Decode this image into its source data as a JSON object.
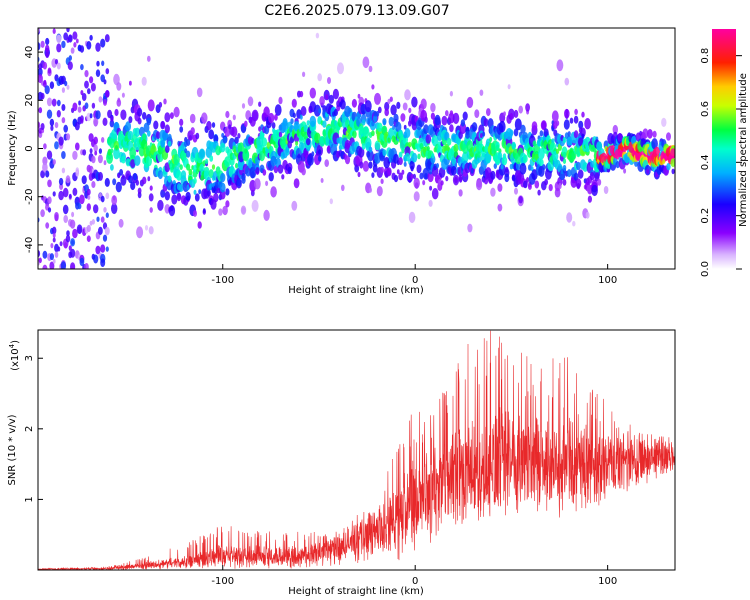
{
  "chart_data": [
    {
      "type": "heatmap",
      "title": "C2E6.2025.079.13.09.G07",
      "xlabel": "Height of straight line (km)",
      "ylabel": "Frequency (Hz)",
      "xlim": [
        -196,
        135
      ],
      "ylim": [
        -50,
        50
      ],
      "xticks": [
        "-100",
        "0",
        "100"
      ],
      "xtick_values": [
        -100,
        0,
        100
      ],
      "yticks": [
        "-40",
        "-20",
        "0",
        "20",
        "40"
      ],
      "ytick_values": [
        -40,
        -20,
        0,
        20,
        40
      ],
      "colorbar": {
        "label": "Normalized spectral amplitude",
        "range": [
          0.0,
          0.9
        ],
        "ticks": [
          "0.0",
          "0.2",
          "0.4",
          "0.6",
          "0.8"
        ],
        "tick_values": [
          0.0,
          0.2,
          0.4,
          0.6,
          0.8
        ],
        "colormap": "rainbow (white-violet-blue-cyan-green-yellow-red-magenta)"
      },
      "description_of_values": {
        "ridge_center_hz": [
          {
            "x": -195,
            "y": 0
          },
          {
            "x": -140,
            "y": 0
          },
          {
            "x": -115,
            "y": -10
          },
          {
            "x": -80,
            "y": 0
          },
          {
            "x": -45,
            "y": 8
          },
          {
            "x": -20,
            "y": 5
          },
          {
            "x": 0,
            "y": 0
          },
          {
            "x": 40,
            "y": 0
          },
          {
            "x": 80,
            "y": -2
          },
          {
            "x": 100,
            "y": -3
          },
          {
            "x": 110,
            "y": 0
          },
          {
            "x": 120,
            "y": -3
          },
          {
            "x": 135,
            "y": -3
          }
        ],
        "peak_amplitude_band": {
          "x_range": [
            100,
            135
          ],
          "amplitude": 0.85
        },
        "noise_region": {
          "x_range": [
            -196,
            -160
          ],
          "amplitude": 0.3
        }
      }
    },
    {
      "type": "line",
      "xlabel": "Height of straight line (km)",
      "ylabel": "SNR (10 * v/v)",
      "multiplier_label": "(x10",
      "multiplier_exponent": "4",
      "xlim": [
        -196,
        135
      ],
      "ylim": [
        0,
        3.4
      ],
      "xticks": [
        "-100",
        "0",
        "100"
      ],
      "xtick_values": [
        -100,
        0,
        100
      ],
      "yticks": [
        "1",
        "2",
        "3"
      ],
      "ytick_values": [
        1,
        2,
        3
      ],
      "line_color": "#e8282a",
      "envelope": {
        "x": [
          -196,
          -160,
          -140,
          -110,
          -100,
          -80,
          -60,
          -40,
          -20,
          0,
          10,
          20,
          30,
          40,
          50,
          60,
          70,
          80,
          90,
          100,
          110,
          120,
          135
        ],
        "max": [
          0.02,
          0.05,
          0.18,
          0.5,
          0.65,
          0.55,
          0.55,
          0.6,
          1.0,
          2.4,
          2.2,
          3.2,
          3.3,
          3.4,
          3.2,
          3.0,
          3.0,
          3.1,
          2.7,
          2.4,
          2.2,
          2.0,
          1.9
        ],
        "mean": [
          0.01,
          0.02,
          0.06,
          0.15,
          0.2,
          0.18,
          0.2,
          0.3,
          0.5,
          0.9,
          1.1,
          1.3,
          1.4,
          1.5,
          1.55,
          1.55,
          1.5,
          1.5,
          1.45,
          1.5,
          1.55,
          1.6,
          1.6
        ],
        "min": [
          0,
          0,
          0,
          0,
          0,
          0,
          0,
          0,
          0.05,
          0.1,
          0.3,
          0.4,
          0.5,
          0.6,
          0.65,
          0.65,
          0.6,
          0.6,
          0.6,
          0.9,
          1.0,
          1.1,
          1.3
        ]
      }
    }
  ]
}
